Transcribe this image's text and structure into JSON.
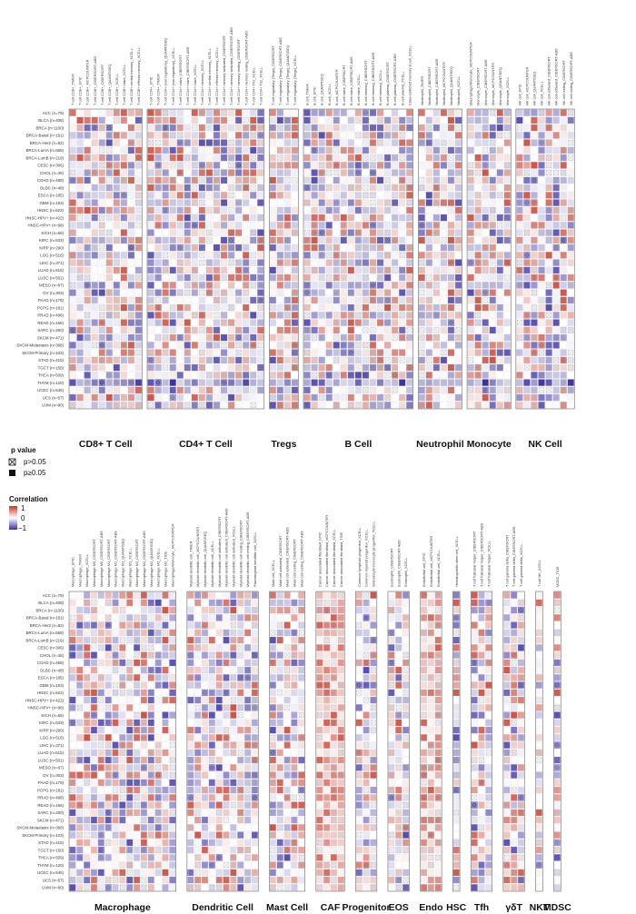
{
  "chart_data": {
    "type": "heatmap",
    "color_scale": {
      "min": -1,
      "mid": 0,
      "max": 1,
      "low_color": "#3b2f9e",
      "mid_color": "#ffffff",
      "high_color": "#c0392b"
    },
    "rows": [
      "ACC (n=79)",
      "BLCA (n=408)",
      "BRCA (n=1100)",
      "BRCA-Basal (n=191)",
      "BRCA-Her2 (n=82)",
      "BRCA-LumA (n=568)",
      "BRCA-LumB (n=219)",
      "CESC (n=306)",
      "CHOL (n=36)",
      "COAD (n=458)",
      "DLBC (n=48)",
      "ESCA (n=185)",
      "GBM (n=153)",
      "HNSC (n=522)",
      "HNSC-HPV+ (n=422)",
      "HNSC-HPV+ (n=98)",
      "KICH (n=66)",
      "KIRC (n=533)",
      "KIRP (n=290)",
      "LGG (n=516)",
      "LIHC (n=371)",
      "LUAD (n=515)",
      "LUSC (n=501)",
      "MESO (n=87)",
      "OV (n=303)",
      "PAAD (n=179)",
      "PCPG (n=181)",
      "PRAD (n=498)",
      "READ (n=166)",
      "SARC (n=260)",
      "SKCM (n=471)",
      "SKCM-Metastasis (n=368)",
      "SKCM-Primary (n=103)",
      "STAD (n=415)",
      "TGCT (n=150)",
      "THCA (n=509)",
      "THYM (n=120)",
      "UCEC (n=545)",
      "UCS (n=57)",
      "UVM (n=80)"
    ],
    "panels": [
      {
        "groups": [
          {
            "name": "CD8+ T Cell",
            "cols": [
              "T cell CD8+_TIMER",
              "T cell CD8+_EPIC",
              "T cell CD8+_MCPCOUNTER",
              "T cell CD8+_CIBERSORT-ABS",
              "T cell CD8+_CIBERSORT",
              "T cell CD8+_QUANTISEQ",
              "T cell CD8+_XCELL",
              "T cell CD8+ naive_XCELL",
              "T cell CD8+ central memory_XCELL",
              "T cell CD8+ effector memory_XCELL"
            ]
          },
          {
            "name": "CD4+ T Cell",
            "cols": [
              "T cell CD4+_EPIC",
              "T cell CD4+_TIMER",
              "T cell CD4+ (non-regulatory)_QUANTISEQ",
              "T cell CD4+ (non-regulatory)_XCELL",
              "T cell CD4+ naive_CIBERSORT",
              "T cell CD4+ naive_CIBERSORT-ABS",
              "T cell CD4+ naive_XCELL",
              "T cell CD4+ memory_XCELL",
              "T cell CD4+ central memory_XCELL",
              "T cell CD4+ effector memory_XCELL",
              "T cell CD4+ memory activated_CIBERSORT",
              "T cell CD4+ memory activated_CIBERSORT-ABS",
              "T cell CD4+ memory resting_CIBERSORT",
              "T cell CD4+ memory resting_CIBERSORT-ABS",
              "T cell CD4+ Th1_XCELL",
              "T cell CD4+ Th2_XCELL"
            ]
          },
          {
            "name": "Tregs",
            "cols": [
              "T cell regulatory (Tregs)_CIBERSORT",
              "T cell regulatory (Tregs)_CIBERSORT-ABS",
              "T cell regulatory (Tregs)_QUANTISEQ",
              "T cell regulatory (Tregs)_XCELL"
            ]
          },
          {
            "name": "B Cell",
            "cols": [
              "B cell_TIMER",
              "B cell_EPIC",
              "B cell_QUANTISEQ",
              "B cell_XCELL",
              "B cell_MCPCOUNTER",
              "B cell naive_CIBERSORT",
              "B cell naive_CIBERSORT-ABS",
              "B cell naive_XCELL",
              "B cell memory_CIBERSORT",
              "B cell memory_CIBERSORT-ABS",
              "B cell memory_XCELL",
              "B cell plasma_CIBERSORT",
              "B cell plasma_CIBERSORT-ABS",
              "B cell plasma_XCELL",
              "Class-switched memory B cell_XCELL"
            ]
          },
          {
            "name": "Neutrophil",
            "cols": [
              "Neutrophil_TIMER",
              "Neutrophil_CIBERSORT",
              "Neutrophil_CIBERSORT-ABS",
              "Neutrophil_MCPCOUNTER",
              "Neutrophil_QUANTISEQ",
              "Neutrophil_XCELL"
            ]
          },
          {
            "name": "Monocyte",
            "cols": [
              "Macrophage/Monocyte_MCPCOUNTER",
              "Monocyte_CIBERSORT",
              "Monocyte_CIBERSORT-ABS",
              "Monocyte_MCPCOUNTER",
              "Monocyte_QUANTISEQ",
              "Monocyte_XCELL"
            ]
          },
          {
            "name": "NK Cell",
            "cols": [
              "NK cell_EPIC",
              "NK cell_MCPCOUNTER",
              "NK cell_QUANTISEQ",
              "NK cell_XCELL",
              "NK cell activated_CIBERSORT",
              "NK cell activated_CIBERSORT-ABS",
              "NK cell resting_CIBERSORT",
              "NK cell resting_CIBERSORT-ABS"
            ]
          }
        ]
      },
      {
        "groups": [
          {
            "name": "Macrophage",
            "cols": [
              "Macrophage_EPIC",
              "Macrophage_TIMER",
              "Macrophage_XCELL",
              "Macrophage M0_CIBERSORT",
              "Macrophage M0_CIBERSORT-ABS",
              "Macrophage M1_CIBERSORT",
              "Macrophage M1_CIBERSORT-ABS",
              "Macrophage M1_QUANTISEQ",
              "Macrophage M1_XCELL",
              "Macrophage M2_CIBERSORT",
              "Macrophage M2_CIBERSORT-ABS",
              "Macrophage M2_QUANTISEQ",
              "Macrophage M2_XCELL",
              "Macrophage M2_TIDE",
              "Macrophage/Monocyte_MCPCOUNTER"
            ]
          },
          {
            "name": "Dendritic Cell",
            "cols": [
              "Myeloid dendritic cell_TIMER",
              "Myeloid dendritic cell_MCPCOUNTER",
              "Myeloid dendritic cell_QUANTISEQ",
              "Myeloid dendritic cell_XCELL",
              "Myeloid dendritic cell activated_CIBERSORT",
              "Myeloid dendritic cell activated_CIBERSORT-ABS",
              "Myeloid dendritic cell activated_XCELL",
              "Myeloid dendritic cell resting_CIBERSORT",
              "Myeloid dendritic cell resting_CIBERSORT-ABS",
              "Plasmacytoid dendritic cell_XCELL"
            ]
          },
          {
            "name": "Mast Cell",
            "cols": [
              "Mast cell_XCELL",
              "Mast cell activated_CIBERSORT",
              "Mast cell activated_CIBERSORT-ABS",
              "Mast cell resting_CIBERSORT",
              "Mast cell resting_CIBERSORT-ABS"
            ]
          },
          {
            "name": "CAF",
            "cols": [
              "Cancer associated fibroblast_EPIC",
              "Cancer associated fibroblast_MCPCOUNTER",
              "Cancer associated fibroblast_XCELL",
              "Cancer associated fibroblast_TIDE"
            ]
          },
          {
            "name": "Progenitor",
            "cols": [
              "Common lymphoid progenitor_XCELL",
              "Common myeloid progenitor_XCELL",
              "Granulocyte-monocyte progenitor_XCELL"
            ]
          },
          {
            "name": "EOS",
            "cols": [
              "Eosinophil_CIBERSORT",
              "Eosinophil_CIBERSORT-ABS",
              "Eosinophil_XCELL"
            ]
          },
          {
            "name": "Endo",
            "cols": [
              "Endothelial cell_EPIC",
              "Endothelial cell_MCPCOUNTER",
              "Endothelial cell_XCELL"
            ]
          },
          {
            "name": "HSC",
            "cols": [
              "Hematopoietic stem cell_XCELL"
            ]
          },
          {
            "name": "Tfh",
            "cols": [
              "T cell follicular helper_CIBERSORT",
              "T cell follicular helper_CIBERSORT-ABS",
              "T cell follicular helper_XCELL"
            ]
          },
          {
            "name": "γδT",
            "cols": [
              "T cell gamma delta_CIBERSORT",
              "T cell gamma delta_CIBERSORT-ABS",
              "T cell gamma delta_XCELL"
            ]
          },
          {
            "name": "NKT",
            "cols": [
              "T cell NK_XCELL"
            ]
          },
          {
            "name": "MDSC",
            "cols": [
              "MDSC_TIDE"
            ]
          }
        ]
      }
    ],
    "legend": {
      "pvalue_title": "p value",
      "pvalue_items": [
        "p>0.05",
        "p≥0.05"
      ],
      "corr_title": "Correlation",
      "corr_ticks": [
        "1",
        "0",
        "−1"
      ]
    }
  }
}
